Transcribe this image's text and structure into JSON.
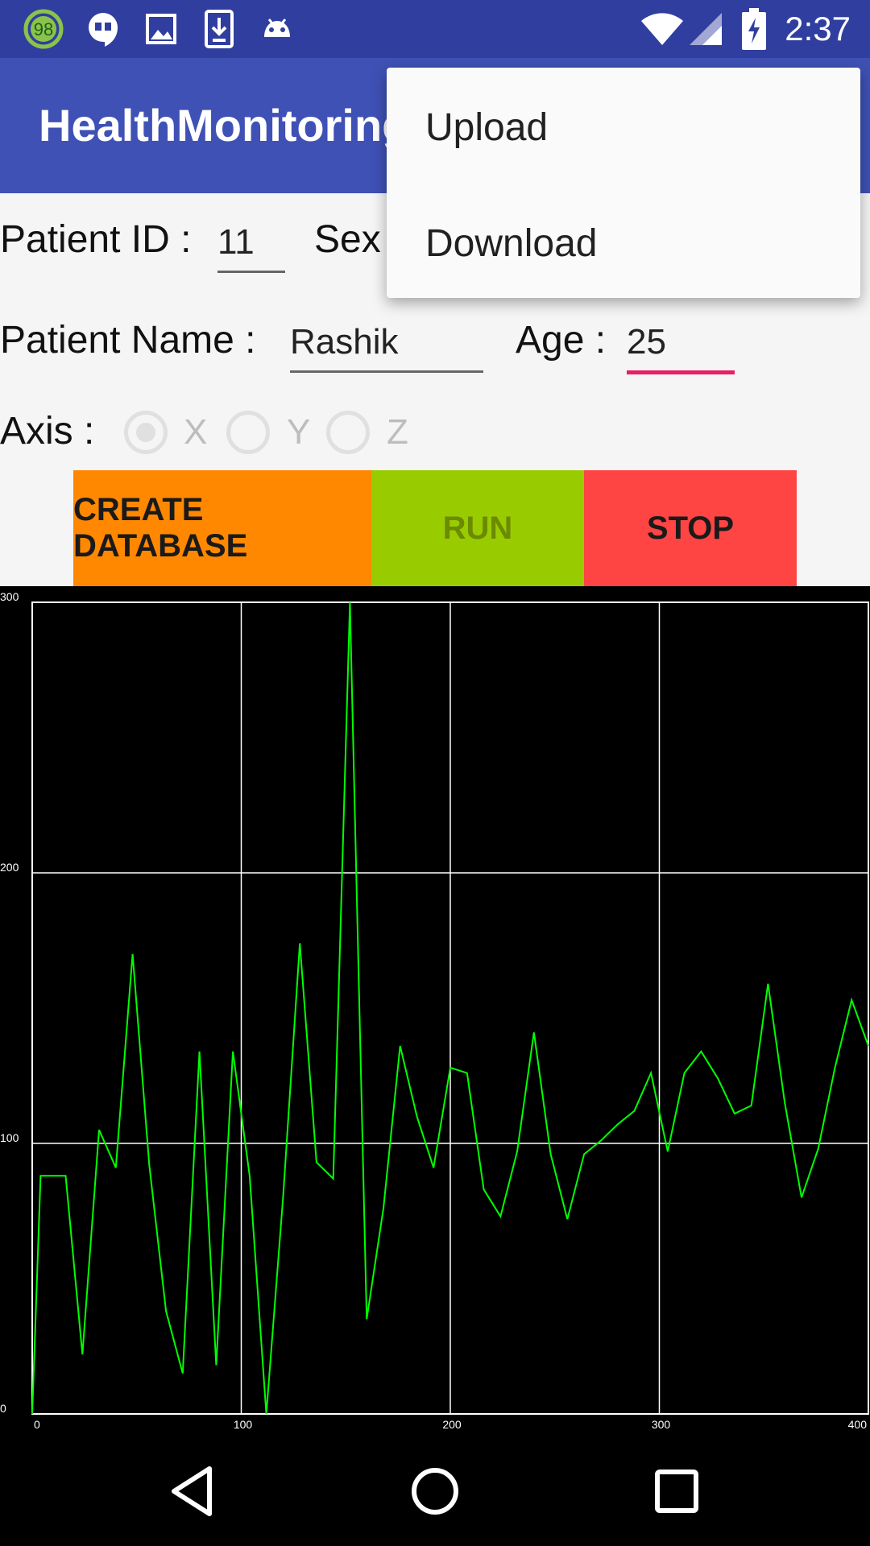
{
  "status_bar": {
    "time": "2:37",
    "notification_badge": "98",
    "icons": [
      "circle-98-icon",
      "hangouts-icon",
      "image-icon",
      "download-icon",
      "android-icon",
      "wifi-icon",
      "signal-icon",
      "battery-charging-icon"
    ]
  },
  "app_bar": {
    "title": "HealthMonitoring"
  },
  "overflow_menu": {
    "items": [
      "Upload",
      "Download"
    ]
  },
  "form": {
    "patient_id_label": "Patient ID :",
    "patient_id_value": "11",
    "sex_label": "Sex",
    "patient_name_label": "Patient Name :",
    "patient_name_value": "Rashik",
    "age_label": "Age :",
    "age_value": "25",
    "axis_label": "Axis :",
    "axis_options": [
      "X",
      "Y",
      "Z"
    ],
    "axis_selected": "X"
  },
  "buttons": {
    "create_database": "CREATE DATABASE",
    "run": "RUN",
    "stop": "STOP"
  },
  "colors": {
    "status_bar": "#303f9f",
    "app_bar": "#3f51b5",
    "create_database": "#ff8800",
    "run": "#99cc00",
    "stop": "#ff4444",
    "age_focus_underline": "#e91e63",
    "line": "#00ff00"
  },
  "chart_data": {
    "type": "line",
    "xlim": [
      0,
      400
    ],
    "ylim": [
      0,
      300
    ],
    "x_ticks": [
      "0",
      "100",
      "200",
      "300",
      "400"
    ],
    "y_ticks": [
      "0",
      "100",
      "200",
      "300"
    ],
    "grid": true,
    "series": [
      {
        "x": [
          0,
          4,
          8,
          16,
          24,
          32,
          40,
          48,
          56,
          64,
          72,
          80,
          88,
          96,
          104,
          112,
          120,
          128,
          136,
          144,
          152,
          160,
          168,
          176,
          184,
          192,
          200,
          208,
          216,
          224,
          232,
          240,
          248,
          256,
          264,
          272,
          280,
          288,
          296,
          304,
          312,
          320,
          328,
          336,
          344,
          352,
          360,
          368,
          376,
          384,
          392,
          400
        ],
        "y": [
          0,
          88,
          88,
          88,
          22,
          105,
          91,
          170,
          92,
          38,
          15,
          134,
          18,
          134,
          88,
          0,
          80,
          174,
          93,
          87,
          300,
          35,
          76,
          136,
          110,
          91,
          128,
          126,
          83,
          73,
          97,
          141,
          96,
          72,
          96,
          101,
          107,
          112,
          126,
          97,
          126,
          134,
          124,
          111,
          114,
          159,
          115,
          80,
          98,
          128,
          153,
          136
        ]
      }
    ]
  },
  "nav_bar": {
    "icons": [
      "back-icon",
      "home-icon",
      "recents-icon"
    ]
  }
}
